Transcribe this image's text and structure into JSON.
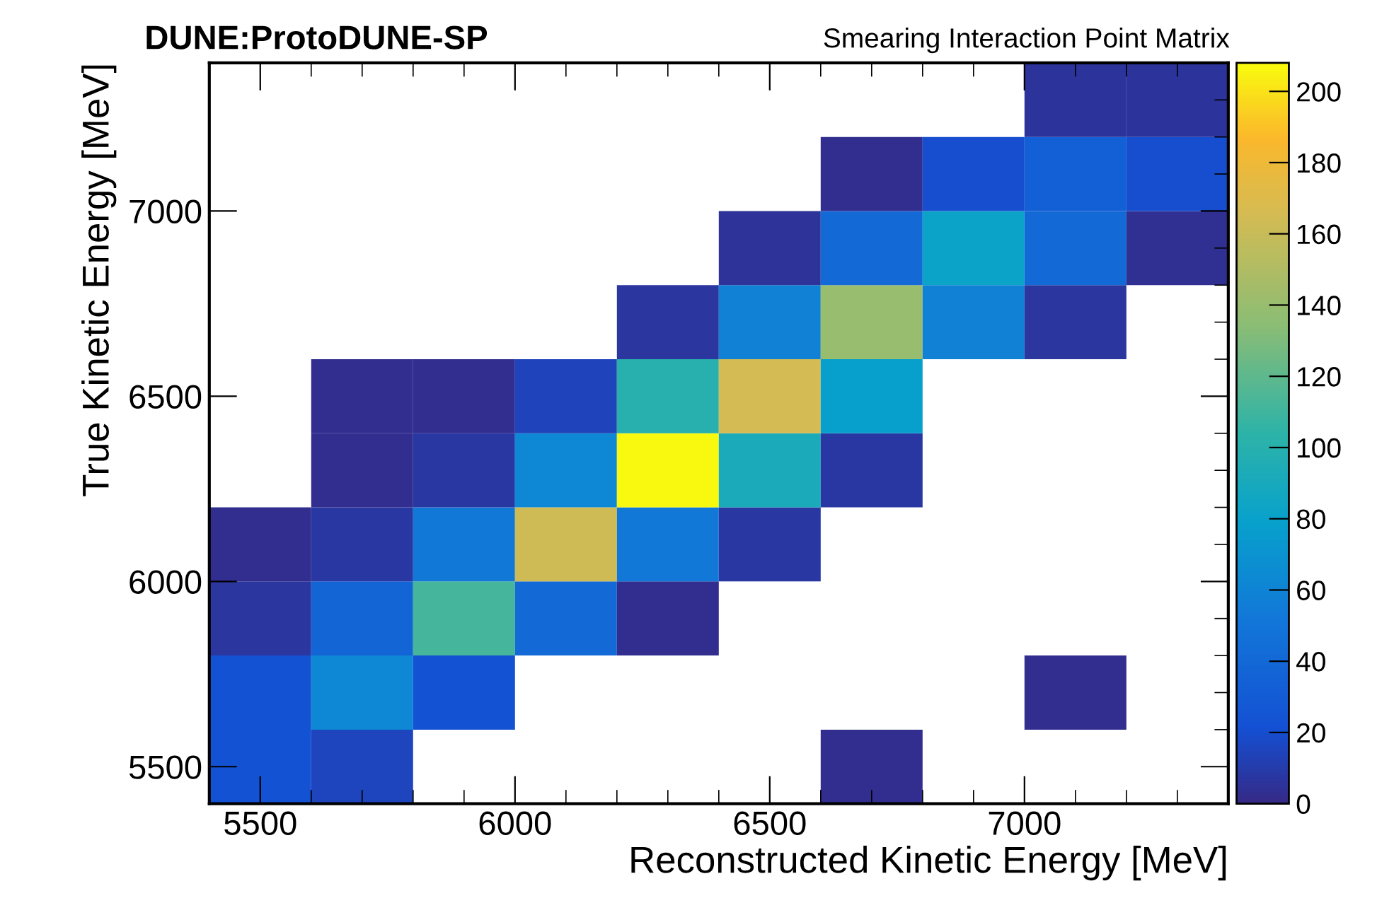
{
  "chart_data": {
    "type": "heatmap",
    "title": "DUNE:ProtoDUNE-SP",
    "subtitle": "Smearing Interaction Point Matrix",
    "xlabel": "Reconstructed Kinetic Energy [MeV]",
    "ylabel": "True Kinetic Energy [MeV]",
    "xlim": [
      5400,
      7400
    ],
    "ylim": [
      5400,
      7400
    ],
    "xticks": [
      5500,
      6000,
      6500,
      7000
    ],
    "yticks": [
      5500,
      6000,
      6500,
      7000
    ],
    "clim": [
      0,
      208
    ],
    "cticks": [
      0,
      20,
      40,
      60,
      80,
      100,
      120,
      140,
      160,
      180,
      200
    ],
    "cells": [
      [
        null,
        null,
        null,
        null,
        null,
        null,
        null,
        null,
        6,
        6
      ],
      [
        null,
        null,
        null,
        null,
        null,
        null,
        3,
        20,
        33,
        20
      ],
      [
        null,
        null,
        null,
        null,
        null,
        5,
        40,
        82,
        40,
        4
      ],
      [
        null,
        null,
        null,
        null,
        7,
        58,
        140,
        58,
        7,
        null
      ],
      [
        null,
        3,
        3,
        14,
        100,
        165,
        78,
        null,
        null,
        null
      ],
      [
        null,
        3,
        8,
        62,
        207,
        92,
        8,
        null,
        null,
        null
      ],
      [
        3,
        8,
        52,
        163,
        52,
        8,
        null,
        null,
        null,
        null
      ],
      [
        7,
        38,
        112,
        40,
        3,
        null,
        null,
        null,
        null,
        null
      ],
      [
        22,
        62,
        22,
        null,
        null,
        null,
        null,
        null,
        3,
        null
      ],
      [
        22,
        15,
        null,
        null,
        null,
        null,
        3,
        null,
        null,
        null
      ]
    ]
  }
}
